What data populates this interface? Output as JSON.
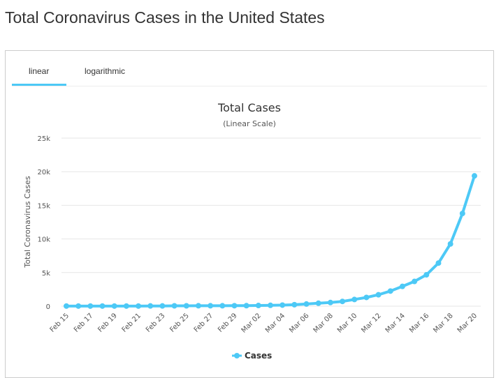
{
  "page": {
    "title": "Total Coronavirus Cases in the United States"
  },
  "tabs": [
    {
      "label": "linear",
      "active": true
    },
    {
      "label": "logarithmic",
      "active": false
    }
  ],
  "colors": {
    "series": "#4dc9f6",
    "grid": "#e6e6e6",
    "tab_active": "#4dc9f6"
  },
  "chart_data": {
    "type": "line",
    "title": "Total Cases",
    "subtitle": "(Linear Scale)",
    "xlabel": "",
    "ylabel": "Total Coronavirus Cases",
    "ylim": [
      0,
      25000
    ],
    "yticks": [
      0,
      5000,
      10000,
      15000,
      20000,
      25000
    ],
    "ytick_labels": [
      "0",
      "5k",
      "10k",
      "15k",
      "20k",
      "25k"
    ],
    "grid": true,
    "legend": "bottom",
    "x": [
      "Feb 15",
      "Feb 16",
      "Feb 17",
      "Feb 18",
      "Feb 19",
      "Feb 20",
      "Feb 21",
      "Feb 22",
      "Feb 23",
      "Feb 24",
      "Feb 25",
      "Feb 26",
      "Feb 27",
      "Feb 28",
      "Feb 29",
      "Mar 01",
      "Mar 02",
      "Mar 03",
      "Mar 04",
      "Mar 05",
      "Mar 06",
      "Mar 07",
      "Mar 08",
      "Mar 09",
      "Mar 10",
      "Mar 11",
      "Mar 12",
      "Mar 13",
      "Mar 14",
      "Mar 15",
      "Mar 16",
      "Mar 17",
      "Mar 18",
      "Mar 19",
      "Mar 20"
    ],
    "xtick_labels": [
      "Feb 15",
      "Feb 17",
      "Feb 19",
      "Feb 21",
      "Feb 23",
      "Feb 25",
      "Feb 27",
      "Feb 29",
      "Mar 02",
      "Mar 04",
      "Mar 06",
      "Mar 08",
      "Mar 10",
      "Mar 12",
      "Mar 14",
      "Mar 16",
      "Mar 18",
      "Mar 20"
    ],
    "series": [
      {
        "name": "Cases",
        "values": [
          15,
          15,
          15,
          15,
          15,
          15,
          15,
          35,
          35,
          53,
          53,
          60,
          60,
          62,
          68,
          75,
          100,
          124,
          158,
          221,
          319,
          435,
          541,
          704,
          994,
          1301,
          1697,
          2247,
          2943,
          3680,
          4663,
          6411,
          9259,
          13789,
          19383
        ]
      }
    ]
  }
}
